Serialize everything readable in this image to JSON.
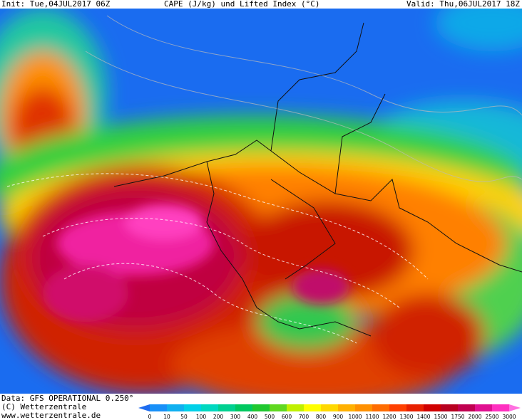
{
  "header": {
    "init": "Init: Tue,04JUL2017 06Z",
    "title": "CAPE (J/kg) und Lifted Index (°C)",
    "valid": "Valid: Thu,06JUL2017 18Z"
  },
  "footer": {
    "source": "Data: GFS OPERATIONAL 0.250°",
    "copyright": "(C) Wetterzentrale",
    "website": "www.wetterzentrale.de"
  },
  "legend": {
    "ticks": [
      0,
      10,
      50,
      100,
      200,
      300,
      400,
      500,
      600,
      700,
      800,
      900,
      1000,
      1100,
      1200,
      1300,
      1400,
      1500,
      1750,
      2000,
      2500,
      3000
    ],
    "colors": [
      "#1e6cf0",
      "#1890f8",
      "#10b0f0",
      "#00d0e8",
      "#00d8c0",
      "#00d090",
      "#00c860",
      "#20c830",
      "#60d820",
      "#c0f000",
      "#ffff00",
      "#ffd800",
      "#ffb000",
      "#ff9000",
      "#ff6c00",
      "#ff4000",
      "#e82000",
      "#d00000",
      "#b80020",
      "#c00050",
      "#e01090",
      "#ff30c0",
      "#ff70e0"
    ]
  }
}
